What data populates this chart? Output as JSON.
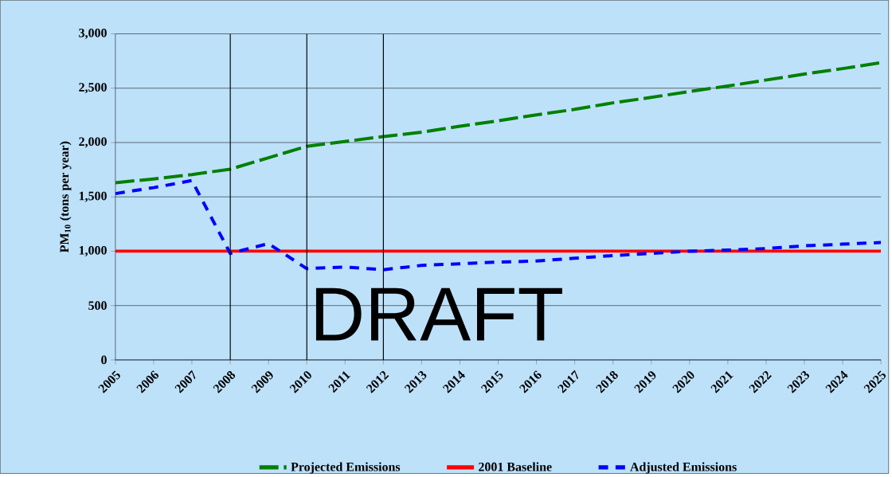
{
  "chart_data": {
    "type": "line",
    "ylabel": "PM$_{10}$ (tons per year)",
    "x": [
      2005,
      2006,
      2007,
      2008,
      2009,
      2010,
      2011,
      2012,
      2013,
      2014,
      2015,
      2016,
      2017,
      2018,
      2019,
      2020,
      2021,
      2022,
      2023,
      2024,
      2025
    ],
    "xlim": [
      2005,
      2025
    ],
    "xticks": [
      2005,
      2006,
      2007,
      2008,
      2009,
      2010,
      2011,
      2012,
      2013,
      2014,
      2015,
      2016,
      2017,
      2018,
      2019,
      2020,
      2021,
      2022,
      2023,
      2024,
      2025
    ],
    "ylim": [
      0,
      3000
    ],
    "yticks": [
      0,
      500,
      {
        "value": 1000,
        "label": "1,000"
      },
      {
        "value": 1500,
        "label": "1,500"
      },
      {
        "value": 2000,
        "label": "2,000"
      },
      {
        "value": 2500,
        "label": "2,500"
      },
      {
        "value": 3000,
        "label": "3,000"
      }
    ],
    "grid": "y",
    "legend": "bottom",
    "series": [
      {
        "name": "Projected Emissions",
        "color": "#008000",
        "line_style": "dashed",
        "values": [
          1630,
          1665,
          1705,
          1755,
          1860,
          1965,
          2010,
          2055,
          2095,
          2150,
          2200,
          2255,
          2305,
          2365,
          2415,
          2470,
          2520,
          2575,
          2630,
          2680,
          2735
        ]
      },
      {
        "name": "2001 Baseline",
        "color": "#ff0000",
        "line_style": "solid",
        "values": [
          1000,
          1000,
          1000,
          1000,
          1000,
          1000,
          1000,
          1000,
          1000,
          1000,
          1000,
          1000,
          1000,
          1000,
          1000,
          1000,
          1000,
          1000,
          1000,
          1000,
          1000
        ]
      },
      {
        "name": "Adjusted Emissions",
        "color": "#0000ff",
        "line_style": "dotted",
        "values": [
          1530,
          1585,
          1650,
          980,
          1070,
          840,
          855,
          830,
          870,
          885,
          900,
          910,
          935,
          960,
          980,
          1000,
          1010,
          1025,
          1050,
          1065,
          1080
        ]
      }
    ],
    "ref_lines": [
      {
        "axis": "x",
        "value": 2008,
        "color": "#000000"
      },
      {
        "axis": "x",
        "value": 2010,
        "color": "#000000"
      },
      {
        "axis": "x",
        "value": 2012,
        "color": "#000000"
      }
    ],
    "annotations": [
      "DRAFT"
    ]
  }
}
